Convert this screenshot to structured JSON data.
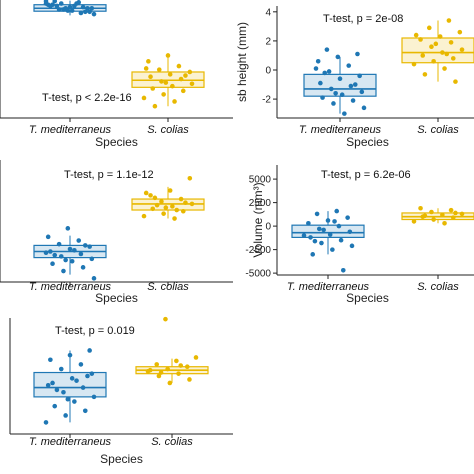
{
  "chart_data": [
    {
      "type": "box",
      "xlabel": "Species",
      "ylabel": "",
      "categories": [
        "T. mediterraneus",
        "S. colias"
      ],
      "annotation": "T-test, p < 2.2e-16",
      "ylim": [
        0,
        10
      ],
      "yticks": [],
      "colors": [
        "#1f77b4",
        "#e8b800"
      ],
      "boxes": [
        {
          "q1": 9.05,
          "median": 9.3,
          "q3": 9.6,
          "whisker_low": 8.7,
          "whisker_high": 9.95
        },
        {
          "q1": 2.6,
          "median": 3.2,
          "q3": 3.9,
          "whisker_low": 1.0,
          "whisker_high": 5.3
        }
      ],
      "points": [
        [
          9.9,
          9.7,
          9.5,
          9.3,
          9.1,
          9.6,
          9.8,
          9.2,
          9.0,
          9.4,
          9.5,
          8.9,
          9.7,
          9.3,
          9.1,
          9.6,
          9.4,
          9.2,
          8.8,
          9.5,
          9.9,
          9.0,
          9.3,
          9.7
        ],
        [
          5.3,
          4.8,
          4.4,
          4.1,
          3.9,
          3.7,
          3.5,
          3.3,
          3.1,
          2.9,
          2.7,
          2.5,
          2.3,
          2.0,
          1.7,
          1.4,
          1.0,
          3.6,
          3.0,
          4.2
        ]
      ]
    },
    {
      "type": "box",
      "xlabel": "Species",
      "ylabel": "sb height (mm)",
      "categories": [
        "T. mediterraneus",
        "S. colias"
      ],
      "annotation": "T-test, p = 2e-08",
      "ylim": [
        -3.3,
        4.4
      ],
      "yticks": [
        4,
        2,
        0,
        -2
      ],
      "colors": [
        "#1f77b4",
        "#e8b800"
      ],
      "boxes": [
        {
          "q1": -1.8,
          "median": -1.3,
          "q3": -0.3,
          "whisker_low": -3.0,
          "whisker_high": 0.9
        },
        {
          "q1": 0.5,
          "median": 1.2,
          "q3": 2.2,
          "whisker_low": -0.8,
          "whisker_high": 3.4
        }
      ],
      "points": [
        [
          1.4,
          1.1,
          0.9,
          0.6,
          0.3,
          -0.1,
          -0.4,
          -0.6,
          -0.9,
          -1.1,
          -1.3,
          -1.5,
          -1.7,
          -1.9,
          -2.1,
          -2.3,
          -2.6,
          -3.0,
          -0.2,
          -1.0,
          -1.6,
          0.1
        ],
        [
          3.4,
          2.9,
          2.6,
          2.3,
          2.1,
          1.9,
          1.6,
          1.4,
          1.2,
          1.0,
          0.8,
          0.6,
          0.4,
          0.1,
          -0.3,
          -0.8,
          1.8,
          2.4,
          1.1
        ]
      ]
    },
    {
      "type": "box",
      "xlabel": "Species",
      "ylabel": "",
      "categories": [
        "T. mediterraneus",
        "S. colias"
      ],
      "annotation": "T-test, p = 1.1e-12",
      "ylim": [
        0,
        10
      ],
      "yticks": [],
      "colors": [
        "#1f77b4",
        "#e8b800"
      ],
      "boxes": [
        {
          "q1": 2.0,
          "median": 2.5,
          "q3": 3.0,
          "whisker_low": 0.6,
          "whisker_high": 3.8
        },
        {
          "q1": 5.9,
          "median": 6.4,
          "q3": 6.8,
          "whisker_low": 5.2,
          "whisker_high": 7.8
        }
      ],
      "points": [
        [
          4.4,
          3.7,
          3.4,
          3.1,
          2.9,
          2.7,
          2.5,
          2.3,
          2.1,
          1.9,
          1.7,
          1.5,
          1.2,
          0.9,
          0.3,
          2.6,
          2.2,
          3.0,
          1.8,
          2.4
        ],
        [
          8.5,
          7.5,
          7.1,
          6.8,
          6.6,
          6.4,
          6.2,
          6.0,
          5.8,
          5.6,
          5.4,
          5.2,
          6.9,
          6.5,
          6.1,
          7.3,
          5.9,
          6.3
        ]
      ]
    },
    {
      "type": "box",
      "xlabel": "Species",
      "ylabel": "Volume (mm³)",
      "categories": [
        "T. mediterraneus",
        "S. colias"
      ],
      "annotation": "T-test, p = 6.2e-06",
      "ylim": [
        -5200,
        6500
      ],
      "yticks": [
        5000,
        2500,
        0,
        -2500,
        -5000
      ],
      "colors": [
        "#1f77b4",
        "#e8b800"
      ],
      "boxes": [
        {
          "q1": -1200,
          "median": -700,
          "q3": 100,
          "whisker_low": -3000,
          "whisker_high": 1600
        },
        {
          "q1": 700,
          "median": 1000,
          "q3": 1400,
          "whisker_low": 300,
          "whisker_high": 1900
        }
      ],
      "points": [
        [
          1600,
          1300,
          900,
          600,
          300,
          0,
          -300,
          -600,
          -900,
          -1200,
          -1500,
          -1800,
          -2100,
          -2500,
          -3000,
          -4700,
          -400,
          -1000,
          500,
          -1600
        ],
        [
          1900,
          1700,
          1500,
          1300,
          1200,
          1000,
          900,
          700,
          500,
          300,
          1100,
          1400
        ]
      ]
    },
    {
      "type": "box",
      "xlabel": "Species",
      "ylabel": "",
      "categories": [
        "T. mediterraneus",
        "S. colias"
      ],
      "annotation": "T-test, p = 0.019",
      "ylim": [
        0,
        10
      ],
      "yticks": [],
      "colors": [
        "#1f77b4",
        "#e8b800"
      ],
      "boxes": [
        {
          "q1": 3.2,
          "median": 4.0,
          "q3": 5.3,
          "whisker_low": 1.0,
          "whisker_high": 7.2
        },
        {
          "q1": 5.2,
          "median": 5.5,
          "q3": 5.8,
          "whisker_low": 4.4,
          "whisker_high": 6.5
        }
      ],
      "points": [
        [
          7.2,
          6.8,
          6.4,
          6.0,
          5.6,
          5.2,
          4.8,
          4.4,
          4.0,
          3.6,
          3.2,
          2.8,
          2.4,
          2.0,
          1.6,
          1.0,
          4.6,
          3.8,
          5.0,
          3.0,
          4.2
        ],
        [
          9.9,
          6.6,
          6.3,
          6.0,
          5.8,
          5.6,
          5.4,
          5.2,
          5.0,
          4.7,
          4.4,
          5.5,
          5.9,
          5.3
        ]
      ]
    }
  ]
}
